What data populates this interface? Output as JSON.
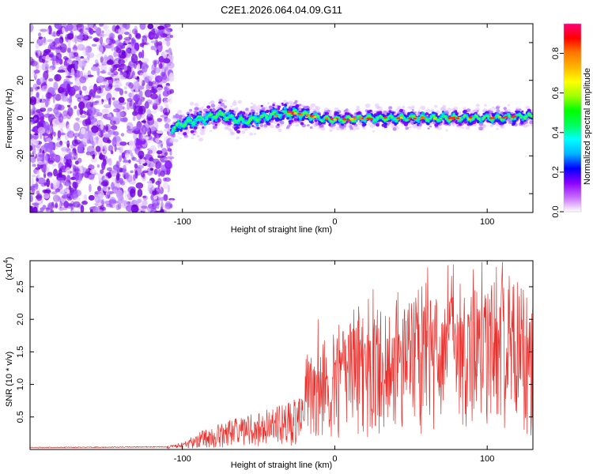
{
  "title": "C2E1.2026.064.04.09.G11",
  "chart_data": [
    {
      "type": "heatmap",
      "xlabel": "Height of straight line (km)",
      "ylabel": "Frequency (Hz)",
      "xlim": [
        -200,
        130
      ],
      "ylim": [
        -50,
        50
      ],
      "x_ticks": [
        -100,
        0,
        100
      ],
      "x_tick_labels": [
        "-100",
        "0",
        "100"
      ],
      "y_ticks": [
        -40,
        -20,
        0,
        20,
        40
      ],
      "y_tick_labels": [
        "-40",
        "-20",
        "0",
        "20",
        "40"
      ],
      "signal_start_km": -107,
      "noise_region_km": [
        -200,
        -107
      ],
      "centerline_hz": [
        {
          "x": -107,
          "y": -6
        },
        {
          "x": -100,
          "y": -3
        },
        {
          "x": -90,
          "y": -1
        },
        {
          "x": -75,
          "y": 2
        },
        {
          "x": -60,
          "y": -2
        },
        {
          "x": -45,
          "y": 1
        },
        {
          "x": -30,
          "y": 3
        },
        {
          "x": -20,
          "y": 2
        },
        {
          "x": -10,
          "y": 0
        },
        {
          "x": 0,
          "y": -1
        },
        {
          "x": 20,
          "y": 0
        },
        {
          "x": 60,
          "y": 0
        },
        {
          "x": 100,
          "y": 0
        },
        {
          "x": 130,
          "y": 1
        }
      ],
      "colorbar": {
        "label": "Normalized spectral amplitude",
        "range": [
          0,
          0.95
        ],
        "ticks": [
          0.0,
          0.2,
          0.4,
          0.6,
          0.8
        ],
        "tick_labels": [
          "0.0",
          "0.2",
          "0.4",
          "0.6",
          "0.8"
        ],
        "colors": [
          "#ffffff",
          "#c86bff",
          "#8a00ff",
          "#0000ff",
          "#00b4ff",
          "#00ffff",
          "#00ff5a",
          "#00ff00",
          "#a0ff00",
          "#ffff00",
          "#ffb400",
          "#ff7800",
          "#ff0000",
          "#ff0078"
        ]
      }
    },
    {
      "type": "line",
      "xlabel": "Height of straight line (km)",
      "ylabel": "SNR (10 * v/v)",
      "y_scale_label": "(x10",
      "y_scale_exp": "4",
      "xlim": [
        -200,
        130
      ],
      "ylim": [
        0,
        2.9
      ],
      "x_ticks": [
        -100,
        0,
        100
      ],
      "x_tick_labels": [
        "-100",
        "0",
        "100"
      ],
      "y_ticks": [
        0.5,
        1.0,
        1.5,
        2.0,
        2.5
      ],
      "y_tick_labels": [
        "0.5",
        "1.0",
        "1.5",
        "2.0",
        "2.5"
      ],
      "series": [
        {
          "name": "SNR",
          "color": "#e8312d",
          "envelope": [
            {
              "x": -200,
              "y": 0.03
            },
            {
              "x": -110,
              "y": 0.04
            },
            {
              "x": -100,
              "y": 0.08
            },
            {
              "x": -90,
              "y": 0.2
            },
            {
              "x": -75,
              "y": 0.3
            },
            {
              "x": -60,
              "y": 0.38
            },
            {
              "x": -45,
              "y": 0.45
            },
            {
              "x": -30,
              "y": 0.55
            },
            {
              "x": -20,
              "y": 0.6
            },
            {
              "x": -19,
              "y": 1.0
            },
            {
              "x": -10,
              "y": 1.2
            },
            {
              "x": 0,
              "y": 1.35
            },
            {
              "x": 20,
              "y": 1.55
            },
            {
              "x": 40,
              "y": 1.7
            },
            {
              "x": 60,
              "y": 1.75
            },
            {
              "x": 80,
              "y": 1.8
            },
            {
              "x": 100,
              "y": 1.9
            },
            {
              "x": 115,
              "y": 2.0
            },
            {
              "x": 130,
              "y": 1.7
            }
          ],
          "notable_peaks": [
            {
              "x": -11,
              "y": 2.0
            },
            {
              "x": 110,
              "y": 2.9
            },
            {
              "x": 117,
              "y": 2.5
            },
            {
              "x": 124,
              "y": 2.1
            }
          ]
        }
      ]
    }
  ]
}
